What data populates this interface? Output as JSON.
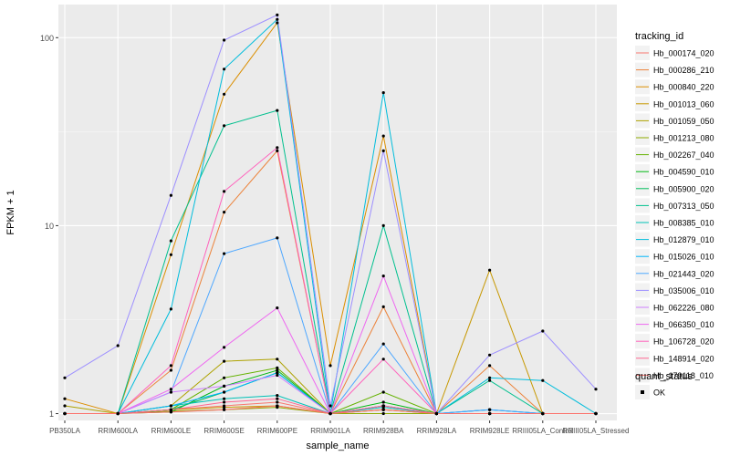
{
  "chart_data": {
    "type": "line",
    "title": "",
    "xlabel": "sample_name",
    "ylabel": "FPKM + 1",
    "yscale": "log10",
    "ylim": [
      0.92,
      150
    ],
    "yticks": [
      1,
      10,
      100
    ],
    "ytick_labels": [
      "1",
      "10",
      "100"
    ],
    "grid": true,
    "legend_position": "right",
    "categories": [
      "PB350LA",
      "RRIM600LA",
      "RRIM600LE",
      "RRIM600SE",
      "RRIM600PE",
      "RRIM901LA",
      "RRIM928BA",
      "RRIM928LA",
      "RRIM928LE",
      "RRIII05LA_Control",
      "RRIII05LA_Stressed"
    ],
    "legend_title": "tracking_id",
    "series": [
      {
        "name": "Hb_000174_020",
        "color": "#F8766D",
        "values": [
          1,
          1,
          1.05,
          1.1,
          1.15,
          1,
          1.05,
          1,
          1,
          1,
          1
        ]
      },
      {
        "name": "Hb_000286_210",
        "color": "#EC8239",
        "values": [
          1,
          1,
          1.7,
          11.8,
          25,
          1,
          3.7,
          1,
          1.8,
          1,
          1
        ]
      },
      {
        "name": "Hb_000840_220",
        "color": "#DB8E00",
        "values": [
          1.2,
          1,
          7,
          50,
          120,
          1.8,
          30,
          1,
          1,
          1,
          1
        ]
      },
      {
        "name": "Hb_001013_060",
        "color": "#C79800",
        "values": [
          1,
          1,
          1.05,
          1.08,
          1.1,
          1,
          1.1,
          1,
          5.8,
          1,
          1
        ]
      },
      {
        "name": "Hb_001059_050",
        "color": "#AEA200",
        "values": [
          1.1,
          1,
          1.1,
          1.9,
          1.95,
          1,
          1.05,
          1,
          1,
          1,
          1
        ]
      },
      {
        "name": "Hb_001213_080",
        "color": "#8FAA00",
        "values": [
          1,
          1,
          1.03,
          1.05,
          1.08,
          1,
          1,
          1,
          1,
          1,
          1
        ]
      },
      {
        "name": "Hb_002267_040",
        "color": "#64B200",
        "values": [
          1,
          1,
          1.05,
          1.55,
          1.75,
          1,
          1.3,
          1,
          1,
          1,
          1
        ]
      },
      {
        "name": "Hb_004590_010",
        "color": "#00B813",
        "values": [
          1,
          1,
          1.02,
          1.4,
          1.7,
          1,
          1.15,
          1,
          1,
          1,
          1
        ]
      },
      {
        "name": "Hb_005900_020",
        "color": "#00BD5C",
        "values": [
          1,
          1,
          1.05,
          1.3,
          1.65,
          1,
          1.1,
          1,
          1,
          1,
          1
        ]
      },
      {
        "name": "Hb_007313_050",
        "color": "#00C08E",
        "values": [
          1,
          1,
          8.3,
          34,
          41,
          1,
          10,
          1,
          1.5,
          1,
          1
        ]
      },
      {
        "name": "Hb_008385_010",
        "color": "#00C1B7",
        "values": [
          1,
          1,
          1.1,
          1.2,
          1.25,
          1,
          1.08,
          1,
          1.05,
          1,
          1
        ]
      },
      {
        "name": "Hb_012879_010",
        "color": "#00BDDC",
        "values": [
          1,
          1,
          3.6,
          68,
          125,
          1,
          51,
          1,
          1.55,
          1.5,
          1
        ]
      },
      {
        "name": "Hb_015026_010",
        "color": "#00B6FA",
        "values": [
          1,
          1,
          1.1,
          1.3,
          1.65,
          1,
          1.1,
          1,
          1.05,
          1,
          1
        ]
      },
      {
        "name": "Hb_021443_020",
        "color": "#4DA7FF",
        "values": [
          1,
          1,
          1.3,
          7.1,
          8.6,
          1,
          2.35,
          1,
          1.05,
          1,
          1
        ]
      },
      {
        "name": "Hb_035006_010",
        "color": "#9D8FFF",
        "values": [
          1.55,
          2.3,
          14.5,
          97,
          132,
          1.1,
          25,
          1,
          2.05,
          2.75,
          1.35
        ]
      },
      {
        "name": "Hb_062226_080",
        "color": "#CE7DFF",
        "values": [
          1,
          1,
          1.3,
          1.4,
          1.6,
          1,
          1.1,
          1,
          1,
          1,
          1
        ]
      },
      {
        "name": "Hb_066350_010",
        "color": "#EE67F0",
        "values": [
          1,
          1,
          1.35,
          2.25,
          3.65,
          1,
          5.4,
          1,
          1,
          1,
          1
        ]
      },
      {
        "name": "Hb_106728_020",
        "color": "#FF62BC",
        "values": [
          1,
          1,
          1.8,
          15.2,
          26,
          1,
          1.95,
          1,
          1,
          1,
          1
        ]
      },
      {
        "name": "Hb_148914_020",
        "color": "#FF6690",
        "values": [
          1,
          1,
          1.05,
          1.15,
          1.2,
          1,
          1.1,
          1,
          1,
          1,
          1
        ]
      },
      {
        "name": "Hb_179118_010",
        "color": "#FC6F69",
        "values": [
          1,
          1,
          1.02,
          1.05,
          1.1,
          1,
          1.05,
          1,
          1,
          1,
          1
        ]
      }
    ],
    "shape_legend_title": "quant_status",
    "shape_legend_items": [
      "OK"
    ]
  }
}
